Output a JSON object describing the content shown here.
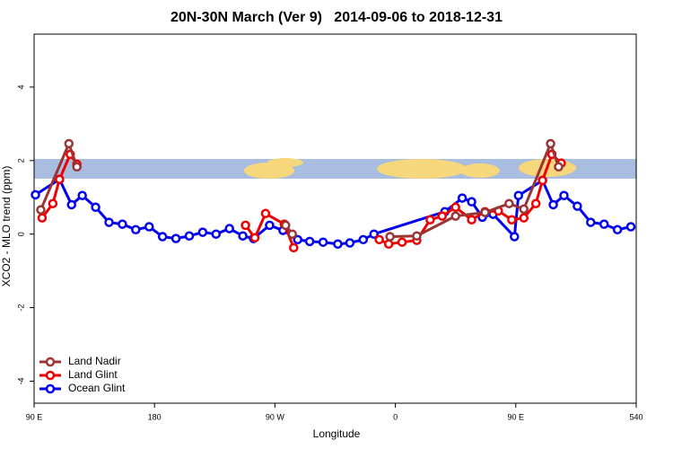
{
  "chart_data": {
    "type": "line",
    "title": "20N-30N March (Ver 9)   2014-09-06 to 2018-12-31",
    "x_label": "Longitude",
    "y_label": "XCO2 - MLO trend (ppm)",
    "xlim": [
      90,
      540
    ],
    "ylim": [
      -4.6,
      5.44
    ],
    "xticks": [
      {
        "value": 90,
        "label": "90 E"
      },
      180,
      {
        "value": 270,
        "label": "90 W"
      },
      {
        "value": 360,
        "label": "0"
      },
      {
        "value": 450,
        "label": "90 E"
      },
      540
    ],
    "yticks": [
      -4,
      -2,
      0,
      2,
      4
    ],
    "legend": "bottomleft",
    "series": [
      {
        "name": "Land Nadir",
        "color": "#993535",
        "x": [
          95,
          116,
          122,
          null,
          278,
          283,
          null,
          356,
          376,
          405,
          427,
          445,
          456,
          476,
          482
        ],
        "values": [
          0.66,
          2.46,
          1.83,
          null,
          0.24,
          0,
          null,
          -0.07,
          -0.05,
          0.49,
          0.59,
          0.83,
          0.68,
          2.46,
          1.83
        ]
      },
      {
        "name": "Land Glint",
        "color": "#ee0000",
        "x": [
          96,
          104,
          109,
          117,
          122,
          null,
          248,
          255,
          263,
          277,
          284,
          null,
          348,
          355,
          365,
          376,
          386,
          395,
          405,
          417,
          427,
          437,
          447,
          456,
          465,
          470,
          477,
          484
        ],
        "values": [
          0.44,
          0.83,
          1.49,
          2.17,
          1.9,
          null,
          0.24,
          -0.1,
          0.56,
          0.27,
          -0.37,
          null,
          -0.15,
          -0.27,
          -0.22,
          -0.17,
          0.39,
          0.49,
          0.73,
          0.39,
          0.61,
          0.63,
          0.39,
          0.44,
          0.83,
          1.46,
          2.17,
          1.93
        ]
      },
      {
        "name": "Ocean Glint",
        "color": "#0000ee",
        "x": [
          91,
          109,
          118,
          126,
          136,
          146,
          156,
          166,
          176,
          186,
          196,
          206,
          216,
          226,
          236,
          246,
          254,
          266,
          276,
          287,
          296,
          306,
          317,
          326,
          336,
          344,
          397,
          410,
          417,
          425,
          433,
          449,
          452,
          470,
          478,
          486,
          496,
          506,
          516,
          526,
          536
        ],
        "values": [
          1.07,
          1.49,
          0.8,
          1.05,
          0.73,
          0.32,
          0.27,
          0.12,
          0.2,
          -0.07,
          -0.12,
          -0.05,
          0.05,
          0,
          0.15,
          -0.05,
          -0.12,
          0.24,
          0.1,
          -0.15,
          -0.2,
          -0.22,
          -0.27,
          -0.24,
          -0.15,
          0,
          0.61,
          0.98,
          0.88,
          0.46,
          0.54,
          -0.07,
          1.05,
          1.46,
          0.8,
          1.05,
          0.76,
          0.32,
          0.27,
          0.12,
          0.2
        ]
      }
    ]
  }
}
